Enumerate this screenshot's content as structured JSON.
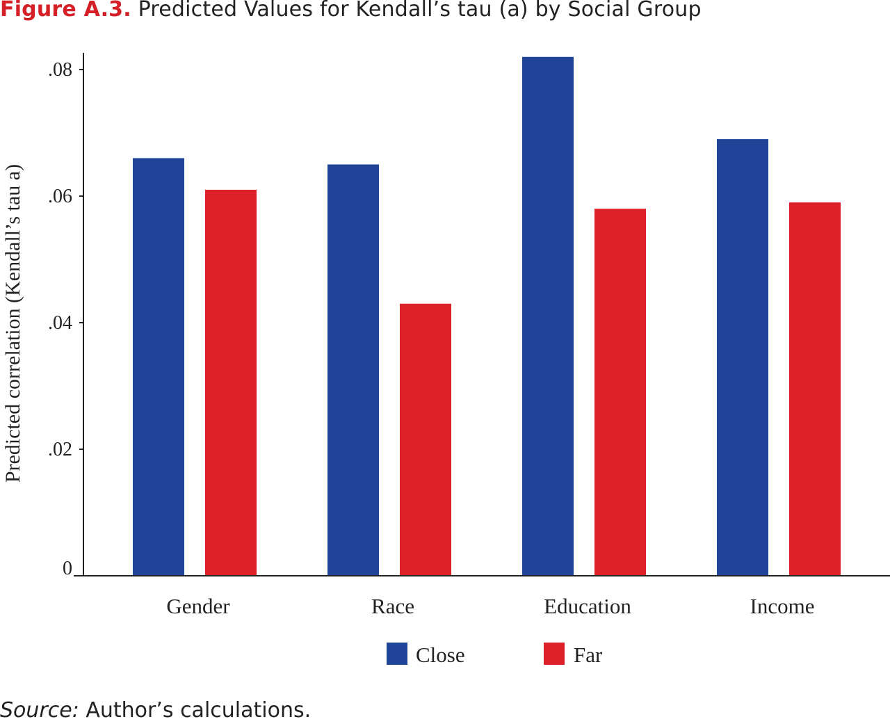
{
  "figure": {
    "label": "Figure A.3.",
    "title": "Predicted Values for Kendall’s tau (a) by Social Group"
  },
  "source": {
    "label": "Source:",
    "text": "Author’s calculations."
  },
  "chart_data": {
    "type": "bar",
    "title": "Predicted Values for Kendall’s tau (a) by Social Group",
    "xlabel": "",
    "ylabel": "Predicted correlation (Kendall’s tau a)",
    "ylim": [
      0,
      0.082
    ],
    "yticks": [
      0,
      0.02,
      0.04,
      0.06,
      0.08
    ],
    "ytick_labels": [
      "0",
      ".02",
      ".04",
      ".06",
      ".08"
    ],
    "categories": [
      "Gender",
      "Race",
      "Education",
      "Income"
    ],
    "series": [
      {
        "name": "Close",
        "color": "#1f4397",
        "values": [
          0.066,
          0.065,
          0.082,
          0.069
        ]
      },
      {
        "name": "Far",
        "color": "#dc2128",
        "values": [
          0.061,
          0.043,
          0.058,
          0.059
        ]
      }
    ],
    "legend": "bottom-center",
    "grid": false
  }
}
